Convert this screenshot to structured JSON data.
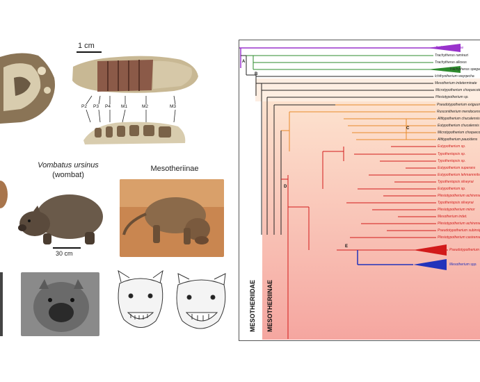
{
  "top_panel": {
    "scale_label": "1 cm",
    "tooth_labels": [
      "P2",
      "P3",
      "P4",
      "M1",
      "M2",
      "M3"
    ]
  },
  "middle_panel": {
    "wombat_title": "Vombatus ursinus",
    "wombat_subtitle": "(wombat)",
    "wombat_scale": "30 cm",
    "meso_title": "Mesotheriinae"
  },
  "tree": {
    "family_label": "MESOTHERIIDAE",
    "subfamily_label": "MESOTHERIINAE",
    "colors": {
      "outgroup": "#9933cc",
      "green": "#2e8b2e",
      "orange": "#e88a2a",
      "red": "#d21a1a",
      "blue": "#2233bb"
    },
    "taxa": [
      "Archaeohyracidae",
      "Trachytherus ramirezi",
      "Trachytherus alloxus",
      "Trachytherus spegazzinianus",
      "Ichthyotherium wayqecha",
      "Mesotherium indeterminate",
      "Microtypotherium choquecotense",
      "Plesiotypotherium sp.",
      "Pseudotypotherium exiguum",
      "Rusconitherium mendocense",
      "Altitypotherium chucalensis",
      "Eutypotherium chucalensis",
      "Microtypotherium choquecotense",
      "Altitypotherium paucidens",
      "Eutypotherium sp.",
      "Typotheriopsis sp.",
      "Typotheriopsis sp.",
      "Eutypotherium superans",
      "Eutypotherium lehmannnitschei",
      "Typotheriopsis silveyrai",
      "Eutypotherium sp.",
      "Plesiotypotherium achirense",
      "Typotheriopsis silveyrai",
      "Plesiotypotherium minor",
      "Mesotherium indet.",
      "Plesiotypotherium achirense",
      "Pseudotypotherium subinsigne",
      "Plesiotypotherium casirense",
      "Pseudotypotherium spp.",
      "Mesotherium spp."
    ],
    "nodes": [
      "A",
      "B",
      "C",
      "D",
      "E"
    ]
  }
}
